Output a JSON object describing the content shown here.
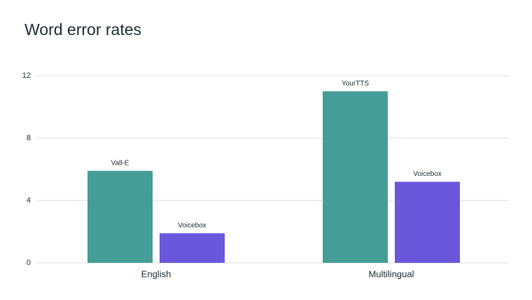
{
  "chart_data": {
    "type": "bar",
    "title": "Word error rates",
    "categories": [
      "English",
      "Multilingual"
    ],
    "series": [
      {
        "color": "#459d98",
        "bar_labels": [
          "Vall-E",
          "YourTTS"
        ],
        "values": [
          5.9,
          11.0
        ]
      },
      {
        "color": "#6b57db",
        "bar_labels": [
          "Voicebox",
          "Voicebox"
        ],
        "values": [
          1.9,
          5.2
        ]
      }
    ],
    "ylim": [
      0,
      12
    ],
    "yticks": [
      0,
      4,
      8,
      12
    ],
    "grid": true
  }
}
